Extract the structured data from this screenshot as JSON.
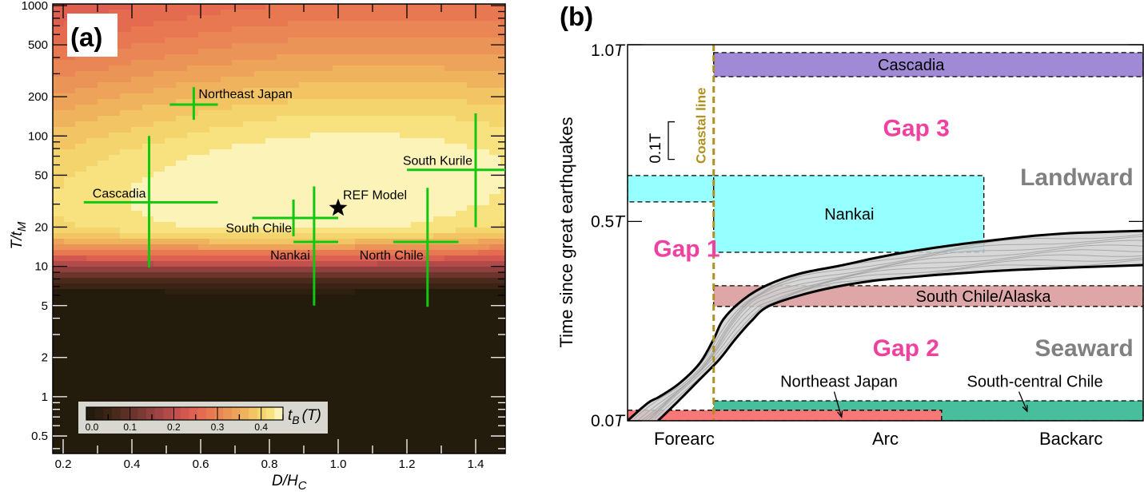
{
  "chart_data": [
    {
      "type": "heatmap",
      "panel_label": "(a)",
      "xlabel": "D/H",
      "xlabel_sub": "C",
      "ylabel": "T/t",
      "ylabel_sub": "M",
      "xscale": "linear",
      "yscale": "log",
      "xlim": [
        0.17,
        1.49
      ],
      "ylim": [
        0.37,
        1030
      ],
      "xticks": [
        0.2,
        0.4,
        0.6,
        0.8,
        1.0,
        1.2,
        1.4
      ],
      "xtick_labels": [
        "0.2",
        "0.4",
        "0.6",
        "0.8",
        "1.0",
        "1.2",
        "1.4"
      ],
      "yticks": [
        0.5,
        1,
        2,
        5,
        10,
        20,
        50,
        100,
        200,
        500,
        1000
      ],
      "ytick_labels": [
        "0.5",
        "1",
        "2",
        "5",
        "10",
        "20",
        "50",
        "100",
        "200",
        "500",
        "1000"
      ],
      "colorbar": {
        "label": "t",
        "label_sub": "B",
        "label_unit": "(T)",
        "range": [
          0.0,
          0.45
        ],
        "ticks": [
          0.0,
          0.1,
          0.2,
          0.3,
          0.4
        ],
        "tick_labels": [
          "0.0",
          "0.1",
          "0.2",
          "0.3",
          "0.4"
        ],
        "levels": 23,
        "colors": [
          "#231c0c",
          "#2f1f11",
          "#3b2416",
          "#4a2a1c",
          "#5a2f24",
          "#6c342c",
          "#7c3a35",
          "#8e3f3e",
          "#9f4444",
          "#b14a49",
          "#c2504d",
          "#d2574f",
          "#de6050",
          "#e46b50",
          "#e77852",
          "#ea8555",
          "#eb9457",
          "#eda35a",
          "#efb35e",
          "#f2c463",
          "#f4d46d",
          "#f7e27f",
          "#fcf3b8"
        ],
        "placement": "bottom-left"
      },
      "field_description": "t_B is ~0 (dark) below T/t_M of about 5-6, rises through red to a pale yellow maximum (~0.45 T) near D/H_C≈0.9-1.0, T/t_M≈40, and decreases toward red at large T/t_M (>500).",
      "crosses": [
        {
          "name": "Northeast Japan",
          "x": 0.58,
          "y": 174,
          "x_range": [
            0.51,
            0.65
          ],
          "y_range": [
            133,
            237
          ],
          "label_pos": "upper-right"
        },
        {
          "name": "Cascadia",
          "x": 0.45,
          "y": 31,
          "x_range": [
            0.26,
            0.65
          ],
          "y_range": [
            9.8,
            100
          ],
          "label_pos": "upper-left"
        },
        {
          "name": "South Chile",
          "x": 0.87,
          "y": 23.5,
          "x_range": [
            0.75,
            1.0
          ],
          "y_range": [
            17,
            32.5
          ],
          "label_pos": "lower-left"
        },
        {
          "name": "Nankai",
          "x": 0.93,
          "y": 15.4,
          "x_range": [
            0.87,
            1.0
          ],
          "y_range": [
            5,
            41
          ],
          "label_pos": "lower-left"
        },
        {
          "name": "North Chile",
          "x": 1.26,
          "y": 15.4,
          "x_range": [
            1.16,
            1.35
          ],
          "y_range": [
            4.9,
            40
          ],
          "label_pos": "lower-left"
        },
        {
          "name": "South Kurile",
          "x": 1.4,
          "y": 55,
          "x_range": [
            1.2,
            1.49
          ],
          "y_range": [
            20,
            149
          ],
          "label_pos": "upper-left"
        }
      ],
      "cross_color": "#10c810",
      "reference": {
        "name": "REF Model",
        "x": 1.0,
        "y": 28,
        "marker": "star"
      }
    },
    {
      "type": "schematic",
      "panel_label": "(b)",
      "ylabel": "Time since great earthquakes",
      "ylim": [
        0.0,
        1.0
      ],
      "yticks": [
        0.0,
        0.53,
        1.0
      ],
      "ytick_labels": [
        "0.0T",
        "0.5T",
        "1.0T"
      ],
      "x_zones": [
        "Forearc",
        "Arc",
        "Backarc"
      ],
      "x_zone_positions": [
        0.11,
        0.5,
        0.86
      ],
      "scale_bar": {
        "label": "0.1T",
        "length": 0.1
      },
      "coastal_line": {
        "label": "Coastal line",
        "x": 0.167,
        "color": "#b09020"
      },
      "bars": [
        {
          "name": "Cascadia",
          "label": "Cascadia",
          "x0": 0.167,
          "x1": 1.0,
          "t0": 0.915,
          "t1": 0.979,
          "color": "#a08ad6",
          "label_x": 0.55
        },
        {
          "name": "Nankai",
          "label": "",
          "x0": 0.0,
          "x1": 0.167,
          "t0": 0.582,
          "t1": 0.652,
          "color": "#96ffff"
        },
        {
          "name": "Nankai",
          "label": "Nankai",
          "x0": 0.167,
          "x1": 0.691,
          "t0": 0.448,
          "t1": 0.652,
          "color": "#96ffff",
          "label_x": 0.43
        },
        {
          "name": "South Chile/Alaska",
          "label": "South Chile/Alaska",
          "x0": 0.167,
          "x1": 1.0,
          "t0": 0.304,
          "t1": 0.359,
          "color": "#dfa6a8",
          "label_x": 0.69
        },
        {
          "name": "South-central Chile",
          "label": "",
          "x0": 0.167,
          "x1": 1.0,
          "t0": 0.0,
          "t1": 0.053,
          "color": "#48bf9c"
        },
        {
          "name": "Northeast Japan",
          "label": "",
          "x0": 0.0,
          "x1": 0.609,
          "t0": 0.0,
          "t1": 0.028,
          "color": "#f87878"
        }
      ],
      "callouts": [
        {
          "label": "Northeast Japan",
          "text_x": 0.41,
          "text_t": 0.09,
          "arrow_to": [
            0.415,
            0.01
          ]
        },
        {
          "label": "South-central Chile",
          "text_x": 0.79,
          "text_t": 0.09,
          "arrow_to": [
            0.775,
            0.025
          ]
        }
      ],
      "gaps": [
        {
          "label": "Gap 1",
          "x": 0.05,
          "t": 0.46
        },
        {
          "label": "Gap 2",
          "x": 0.54,
          "t": 0.195
        },
        {
          "label": "Gap 3",
          "x": 0.56,
          "t": 0.78
        }
      ],
      "regions": [
        {
          "label": "Landward",
          "x": 0.95,
          "t": 0.65
        },
        {
          "label": "Seaward",
          "x": 0.95,
          "t": 0.195
        }
      ],
      "band": {
        "upper": [
          [
            0,
            0
          ],
          [
            0.039,
            0.047
          ],
          [
            0.062,
            0.064
          ],
          [
            0.101,
            0.1
          ],
          [
            0.14,
            0.153
          ],
          [
            0.167,
            0.217
          ],
          [
            0.186,
            0.27
          ],
          [
            0.225,
            0.323
          ],
          [
            0.271,
            0.361
          ],
          [
            0.333,
            0.391
          ],
          [
            0.411,
            0.412
          ],
          [
            0.488,
            0.435
          ],
          [
            0.566,
            0.454
          ],
          [
            0.643,
            0.469
          ],
          [
            0.721,
            0.482
          ],
          [
            0.798,
            0.493
          ],
          [
            0.876,
            0.5
          ],
          [
            1.0,
            0.505
          ]
        ],
        "lower": [
          [
            0.059,
            0
          ],
          [
            0.093,
            0.045
          ],
          [
            0.14,
            0.11
          ],
          [
            0.178,
            0.163
          ],
          [
            0.209,
            0.217
          ],
          [
            0.24,
            0.265
          ],
          [
            0.271,
            0.303
          ],
          [
            0.333,
            0.333
          ],
          [
            0.411,
            0.358
          ],
          [
            0.488,
            0.374
          ],
          [
            0.566,
            0.384
          ],
          [
            0.643,
            0.392
          ],
          [
            0.721,
            0.399
          ],
          [
            0.798,
            0.404
          ],
          [
            0.876,
            0.408
          ],
          [
            1.0,
            0.414
          ]
        ],
        "fill": "#d0d0d0",
        "inner_line_color": "#a8a8a8",
        "inner_lines": 8
      }
    }
  ]
}
